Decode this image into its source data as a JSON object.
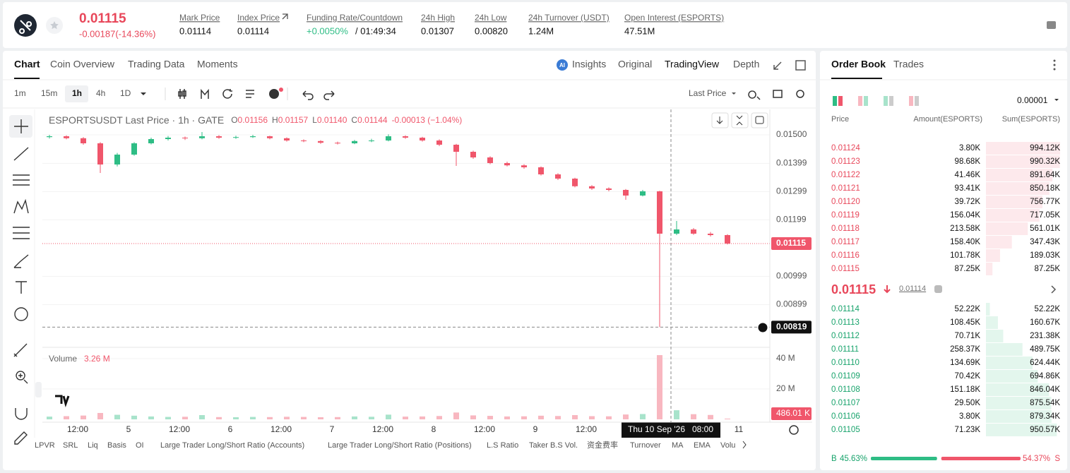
{
  "header": {
    "last_price": "0.01115",
    "change": "-0.00187(-14.36%)",
    "stats": [
      {
        "label": "Mark Price",
        "value": "0.01114"
      },
      {
        "label": "Index Price",
        "value": "0.01114"
      },
      {
        "label": "Funding Rate/Countdown",
        "value": "+0.0050%",
        "extra": "/ 01:49:34"
      },
      {
        "label": "24h High",
        "value": "0.01307"
      },
      {
        "label": "24h Low",
        "value": "0.00820"
      },
      {
        "label": "24h Turnover (USDT)",
        "value": "1.24M"
      },
      {
        "label": "Open Interest (ESPORTS)",
        "value": "47.51M"
      }
    ]
  },
  "chart_tabs": [
    "Chart",
    "Coin Overview",
    "Trading Data",
    "Moments"
  ],
  "view_tabs": [
    "Insights",
    "Original",
    "TradingView",
    "Depth"
  ],
  "intervals": [
    "1m",
    "15m",
    "1h",
    "4h",
    "1D"
  ],
  "price_source": "Last Price",
  "chart_data": {
    "type": "candlestick",
    "title": "ESPORTSUSDT Last Price · 1h · GATE",
    "ohlc_legend": [
      {
        "label": "O",
        "value": "0.01156"
      },
      {
        "label": "H",
        "value": "0.01157"
      },
      {
        "label": "L",
        "value": "0.01140"
      },
      {
        "label": "C",
        "value": "0.01144"
      }
    ],
    "legend_change": "-0.00013 (−1.04%)",
    "up_color": "#2ebd85",
    "down_color": "#f0566b",
    "open": [
      0.01492,
      0.01495,
      0.01488,
      0.0147,
      0.01395,
      0.0143,
      0.0147,
      0.01485,
      0.0149,
      0.01488,
      0.01495,
      0.0149,
      0.01492,
      0.01495,
      0.01488,
      0.0148,
      0.01478,
      0.01472,
      0.0147,
      0.01478,
      0.0148,
      0.01495,
      0.0149,
      0.0148,
      0.01465,
      0.0144,
      0.0142,
      0.014,
      0.01392,
      0.01385,
      0.0136,
      0.01345,
      0.01318,
      0.0131,
      0.01305,
      0.01285,
      0.013,
      0.0115,
      0.01165,
      0.0115,
      0.01145
    ],
    "high": [
      0.015,
      0.01498,
      0.01492,
      0.01474,
      0.01436,
      0.01474,
      0.0149,
      0.01496,
      0.01494,
      0.0151,
      0.01499,
      0.01497,
      0.015,
      0.01497,
      0.01491,
      0.01484,
      0.01481,
      0.01476,
      0.01482,
      0.01486,
      0.01502,
      0.01498,
      0.01493,
      0.01484,
      0.01468,
      0.01444,
      0.01424,
      0.01405,
      0.01396,
      0.01388,
      0.01364,
      0.01348,
      0.01322,
      0.01314,
      0.01308,
      0.01305,
      0.01302,
      0.01195,
      0.0117,
      0.01156,
      0.01148
    ],
    "low": [
      0.01487,
      0.01484,
      0.01465,
      0.01365,
      0.01388,
      0.01426,
      0.01466,
      0.0148,
      0.01482,
      0.01484,
      0.01486,
      0.01486,
      0.01489,
      0.01484,
      0.01476,
      0.01474,
      0.01468,
      0.01466,
      0.01467,
      0.01474,
      0.01477,
      0.01486,
      0.01476,
      0.0146,
      0.0139,
      0.01415,
      0.01396,
      0.01388,
      0.0138,
      0.01356,
      0.0134,
      0.01314,
      0.01305,
      0.013,
      0.0127,
      0.01282,
      0.00819,
      0.01145,
      0.01146,
      0.0114,
      0.01112
    ],
    "close": [
      0.01495,
      0.01488,
      0.0147,
      0.01395,
      0.0143,
      0.0147,
      0.01485,
      0.0149,
      0.01488,
      0.01495,
      0.0149,
      0.01492,
      0.01495,
      0.01488,
      0.0148,
      0.01478,
      0.01472,
      0.0147,
      0.01478,
      0.0148,
      0.01495,
      0.0149,
      0.0148,
      0.01465,
      0.0144,
      0.0142,
      0.014,
      0.01392,
      0.01385,
      0.0136,
      0.01345,
      0.01318,
      0.0131,
      0.01305,
      0.01285,
      0.013,
      0.0115,
      0.01165,
      0.0115,
      0.01145,
      0.01115
    ],
    "ylim": [
      0.007525,
      0.0159
    ],
    "yticks": [
      {
        "value": 0.015,
        "label": "0.01500"
      },
      {
        "value": 0.01399,
        "label": "0.01399"
      },
      {
        "value": 0.01299,
        "label": "0.01299"
      },
      {
        "value": 0.01199,
        "label": "0.01199"
      },
      {
        "value": 0.00999,
        "label": "0.00999"
      },
      {
        "value": 0.00899,
        "label": "0.00899"
      }
    ],
    "last_price_tag": {
      "value": 0.01115,
      "label": "0.01115"
    },
    "crosshair_tag": {
      "value": 0.00819,
      "label": "0.00819"
    },
    "x_labels": [
      "12:00",
      "5",
      "12:00",
      "6",
      "12:00",
      "7",
      "12:00",
      "8",
      "12:00",
      "9",
      "12:00",
      "11"
    ],
    "crosshair_date": "Thu 10 Sep '26",
    "crosshair_time": "08:00",
    "volume_title": "Volume",
    "volume_value": "3.26 M",
    "volumes": [
      1800000,
      2100000,
      2500000,
      4200000,
      3000000,
      2400000,
      1900000,
      1600000,
      1700000,
      2800000,
      1500000,
      1400000,
      1600000,
      1500000,
      1700000,
      1600000,
      1400000,
      1500000,
      1900000,
      1700000,
      3100000,
      1800000,
      1900000,
      2200000,
      4500000,
      2600000,
      2300000,
      1900000,
      2000000,
      2400000,
      2200000,
      2800000,
      2100000,
      2000000,
      3200000,
      3500000,
      42300000,
      6000000,
      3400000,
      2900000,
      486010
    ],
    "volume_ylim": [
      0,
      46500000
    ],
    "volume_yticks": [
      {
        "value": 40000000,
        "label": "40 M"
      },
      {
        "value": 20000000,
        "label": "20 M"
      }
    ],
    "last_volume_tag": {
      "value": 486010,
      "label": "486.01 K"
    }
  },
  "indicators": [
    "LPVR",
    "SRL",
    "Liq",
    "Basis",
    "OI",
    "Large Trader Long/Short Ratio (Accounts)",
    "Large Trader Long/Short Ratio (Positions)",
    "L.S Ratio",
    "Taker B.S Vol.",
    "资金费率",
    "Turnover",
    "MA",
    "EMA",
    "Volu"
  ],
  "order_book": {
    "tabs": [
      "Order Book",
      "Trades"
    ],
    "precision": "0.00001",
    "columns": [
      "Price",
      "Amount(ESPORTS)",
      "Sum(ESPORTS)"
    ],
    "asks": [
      [
        "0.01124",
        "3.80K",
        "994.12K"
      ],
      [
        "0.01123",
        "98.68K",
        "990.32K"
      ],
      [
        "0.01122",
        "41.46K",
        "891.64K"
      ],
      [
        "0.01121",
        "93.41K",
        "850.18K"
      ],
      [
        "0.01120",
        "39.72K",
        "756.77K"
      ],
      [
        "0.01119",
        "156.04K",
        "717.05K"
      ],
      [
        "0.01118",
        "213.58K",
        "561.01K"
      ],
      [
        "0.01117",
        "158.40K",
        "347.43K"
      ],
      [
        "0.01116",
        "101.78K",
        "189.03K"
      ],
      [
        "0.01115",
        "87.25K",
        "87.25K"
      ]
    ],
    "mid_price": "0.01115",
    "mark_price": "0.01114",
    "bids": [
      [
        "0.01114",
        "52.22K",
        "52.22K"
      ],
      [
        "0.01113",
        "108.45K",
        "160.67K"
      ],
      [
        "0.01112",
        "70.71K",
        "231.38K"
      ],
      [
        "0.01111",
        "258.37K",
        "489.75K"
      ],
      [
        "0.01110",
        "134.69K",
        "624.44K"
      ],
      [
        "0.01109",
        "70.42K",
        "694.86K"
      ],
      [
        "0.01108",
        "151.18K",
        "846.04K"
      ],
      [
        "0.01107",
        "29.50K",
        "875.54K"
      ],
      [
        "0.01106",
        "3.80K",
        "879.34K"
      ],
      [
        "0.01105",
        "71.23K",
        "950.57K"
      ]
    ],
    "buy_label": "B",
    "buy_ratio": {
      "value": 45.63,
      "label": "45.63%"
    },
    "sell_ratio": {
      "value": 54.37,
      "label": "54.37%"
    },
    "sell_label": "S"
  }
}
